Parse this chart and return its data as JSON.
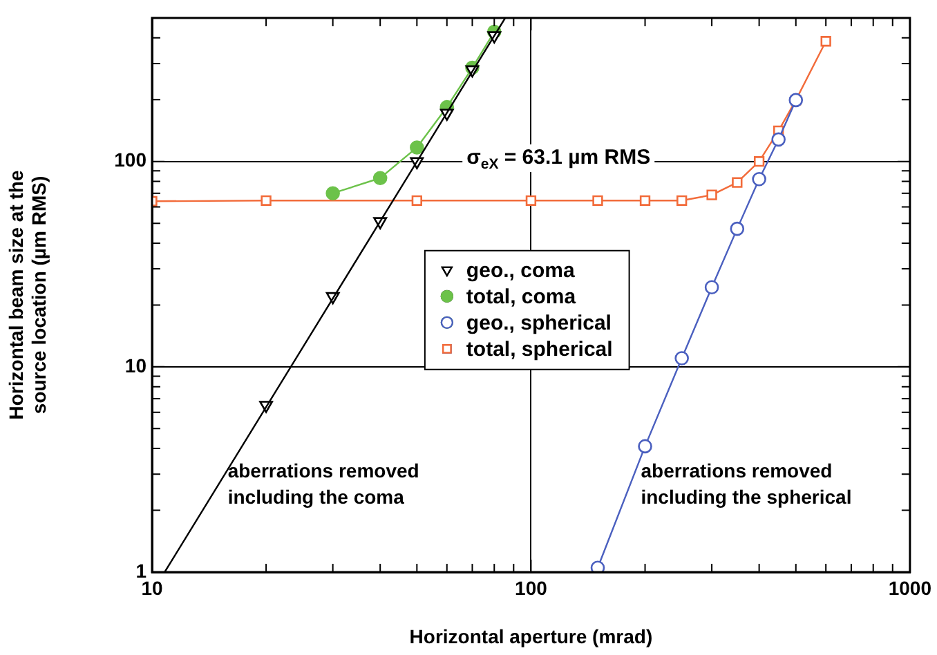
{
  "chart_data": {
    "type": "line",
    "xlabel": "Horizontal aperture (mrad)",
    "ylabel": "Horizontal beam size at the\nsource location (µm RMS)",
    "log": "xy",
    "grid": true,
    "legend": "center",
    "line_style": "solid",
    "xlim": [
      10,
      1000
    ],
    "ylim": [
      1,
      500
    ],
    "xticks": [
      10,
      {
        "value": 20,
        "label": null
      },
      {
        "value": 30,
        "label": null
      },
      {
        "value": 40,
        "label": null
      },
      {
        "value": 50,
        "label": null
      },
      {
        "value": 60,
        "label": null
      },
      {
        "value": 70,
        "label": null
      },
      {
        "value": 80,
        "label": null
      },
      {
        "value": 90,
        "label": null
      },
      100,
      {
        "value": 200,
        "label": null
      },
      {
        "value": 300,
        "label": null
      },
      {
        "value": 400,
        "label": null
      },
      {
        "value": 500,
        "label": null
      },
      {
        "value": 600,
        "label": null
      },
      {
        "value": 700,
        "label": null
      },
      {
        "value": 800,
        "label": null
      },
      {
        "value": 900,
        "label": null
      },
      1000
    ],
    "yticks": [
      1,
      {
        "value": 2,
        "label": null
      },
      {
        "value": 3,
        "label": null
      },
      {
        "value": 4,
        "label": null
      },
      {
        "value": 5,
        "label": null
      },
      {
        "value": 6,
        "label": null
      },
      {
        "value": 7,
        "label": null
      },
      {
        "value": 8,
        "label": null
      },
      {
        "value": 9,
        "label": null
      },
      10,
      {
        "value": 20,
        "label": null
      },
      {
        "value": 30,
        "label": null
      },
      {
        "value": 40,
        "label": null
      },
      {
        "value": 50,
        "label": null
      },
      {
        "value": 60,
        "label": null
      },
      {
        "value": 70,
        "label": null
      },
      {
        "value": 80,
        "label": null
      },
      {
        "value": 90,
        "label": null
      },
      100,
      {
        "value": 200,
        "label": null
      },
      {
        "value": 300,
        "label": null
      },
      {
        "value": 400,
        "label": null
      }
    ],
    "series": [
      {
        "type": "line",
        "marker": "none",
        "color": "#000000",
        "x": [
          10.8,
          85.5
        ],
        "values": [
          1,
          500
        ]
      },
      {
        "name": "geo., coma",
        "type": "scatter",
        "marker": "triangle",
        "color": "#000000",
        "x": [
          20,
          30,
          40,
          50,
          60,
          70,
          80
        ],
        "values": [
          6.5,
          22,
          51,
          100,
          172,
          280,
          410
        ]
      },
      {
        "name": "total, coma",
        "type": "line",
        "marker": "circle",
        "color": "#6cc24a",
        "x": [
          30,
          40,
          50,
          60,
          70,
          80
        ],
        "values": [
          70,
          83,
          117,
          184,
          286,
          428
        ]
      },
      {
        "name": "geo., spherical",
        "type": "line",
        "marker": "circle",
        "color": "#4a5fbf",
        "x": [
          150,
          200,
          250,
          300,
          350,
          400,
          450,
          500
        ],
        "values": [
          1.05,
          4.1,
          11,
          24.4,
          47,
          82,
          128,
          199
        ]
      },
      {
        "name": "total, spherical",
        "type": "line",
        "marker": "square",
        "color": "#f26b3a",
        "x": [
          10,
          20,
          50,
          100,
          150,
          200,
          250,
          300,
          350,
          400,
          450,
          500,
          600
        ],
        "values": [
          64,
          64.5,
          64.5,
          64.5,
          64.5,
          64.5,
          64.5,
          68.7,
          79,
          100,
          141,
          199,
          385
        ]
      }
    ],
    "annotations": [
      "σ$_{eX}$ = 63.1 µm RMS",
      "aberrations removed\nincluding the coma",
      "aberrations removed\nincluding the spherical"
    ]
  }
}
